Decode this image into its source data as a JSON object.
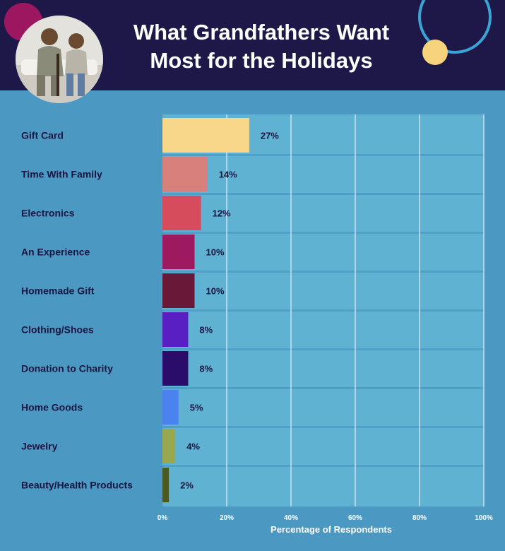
{
  "title_lines": [
    "What Grandfathers Want",
    "Most for the Holidays"
  ],
  "colors": {
    "header_bg": "#1e1848",
    "page_bg": "#4b99c2",
    "plot_bg": "#5fb2d2",
    "row_band": "#4f9fc7",
    "grid": "#c8e2ef"
  },
  "chart_data": {
    "type": "bar",
    "orientation": "horizontal",
    "title": "What Grandfathers Want Most for the Holidays",
    "xlabel": "Percentage of Respondents",
    "ylabel": "",
    "xlim": [
      0,
      100
    ],
    "x_ticks": [
      "0%",
      "20%",
      "40%",
      "60%",
      "80%",
      "100%"
    ],
    "grid": true,
    "categories": [
      "Gift Card",
      "Time With Family",
      "Electronics",
      "An Experience",
      "Homemade Gift",
      "Clothing/Shoes",
      "Donation to Charity",
      "Home Goods",
      "Jewelry",
      "Beauty/Health Products"
    ],
    "values": [
      27,
      14,
      12,
      10,
      10,
      8,
      8,
      5,
      4,
      2
    ],
    "value_labels": [
      "27%",
      "14%",
      "12%",
      "10%",
      "10%",
      "8%",
      "8%",
      "5%",
      "4%",
      "2%"
    ],
    "bar_colors": [
      "#f8d68a",
      "#d8817c",
      "#d64c5c",
      "#9e1a60",
      "#6a1838",
      "#5a1fc2",
      "#2a0c6a",
      "#4a82f0",
      "#99a84e",
      "#4a5a22"
    ]
  }
}
